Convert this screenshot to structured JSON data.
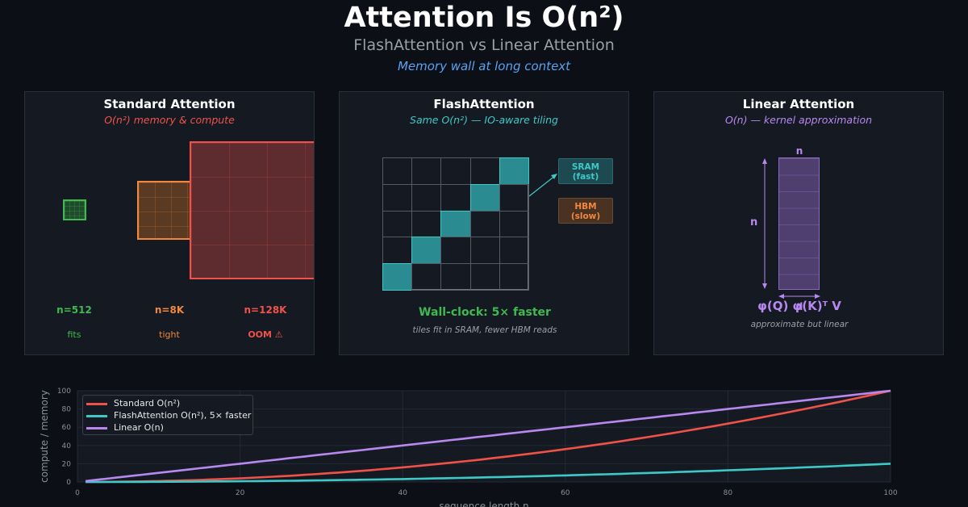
{
  "header": {
    "title": "Attention Is O(n²)",
    "subtitle": "FlashAttention vs Linear Attention",
    "tagline": "Memory wall at long context"
  },
  "panels": {
    "standard": {
      "title": "Standard Attention",
      "subtitle": "O(n²) memory & compute",
      "items": [
        {
          "label": "n=512",
          "status": "fits"
        },
        {
          "label": "n=8K",
          "status": "tight"
        },
        {
          "label": "n=128K",
          "status": "OOM ⚠"
        }
      ]
    },
    "flash": {
      "title": "FlashAttention",
      "subtitle": "Same O(n²) — IO-aware tiling",
      "sram_label": "SRAM\n(fast)",
      "hbm_label": "HBM\n(slow)",
      "result": "Wall-clock: 5× faster",
      "note": "tiles fit in SRAM, fewer HBM reads"
    },
    "linear": {
      "title": "Linear Attention",
      "subtitle": "O(n) — kernel approximation",
      "dim_top": "n",
      "dim_left": "n",
      "dim_bottom": "d",
      "formula": "φ(Q) φ(K)ᵀ V",
      "note": "approximate but linear"
    }
  },
  "colors": {
    "green": "#3fb950",
    "orange": "#f0883e",
    "red": "#f0524a",
    "teal": "#3ec8c8",
    "purple": "#b888f0"
  },
  "chart_data": {
    "type": "line",
    "xlabel": "sequence length n",
    "ylabel": "compute / memory",
    "xlim": [
      0,
      100
    ],
    "ylim": [
      0,
      100
    ],
    "xticks": [
      0,
      20,
      40,
      60,
      80,
      100
    ],
    "yticks": [
      0,
      20,
      40,
      60,
      80,
      100
    ],
    "grid": true,
    "legend_position": "top-left",
    "series": [
      {
        "name": "Standard O(n²)",
        "color": "#f0524a",
        "x": [
          1,
          10,
          20,
          30,
          40,
          50,
          60,
          70,
          80,
          90,
          100
        ],
        "y": [
          0.01,
          1,
          4,
          9,
          16,
          25,
          36,
          49,
          64,
          81,
          100
        ]
      },
      {
        "name": "FlashAttention O(n²), 5× faster",
        "color": "#3ec8c8",
        "x": [
          1,
          10,
          20,
          30,
          40,
          50,
          60,
          70,
          80,
          90,
          100
        ],
        "y": [
          0.002,
          0.2,
          0.8,
          1.8,
          3.2,
          5,
          7.2,
          9.8,
          12.8,
          16.2,
          20
        ]
      },
      {
        "name": "Linear O(n)",
        "color": "#b888f0",
        "x": [
          1,
          10,
          20,
          30,
          40,
          50,
          60,
          70,
          80,
          90,
          100
        ],
        "y": [
          1,
          10,
          20,
          30,
          40,
          50,
          60,
          70,
          80,
          90,
          100
        ]
      }
    ]
  }
}
